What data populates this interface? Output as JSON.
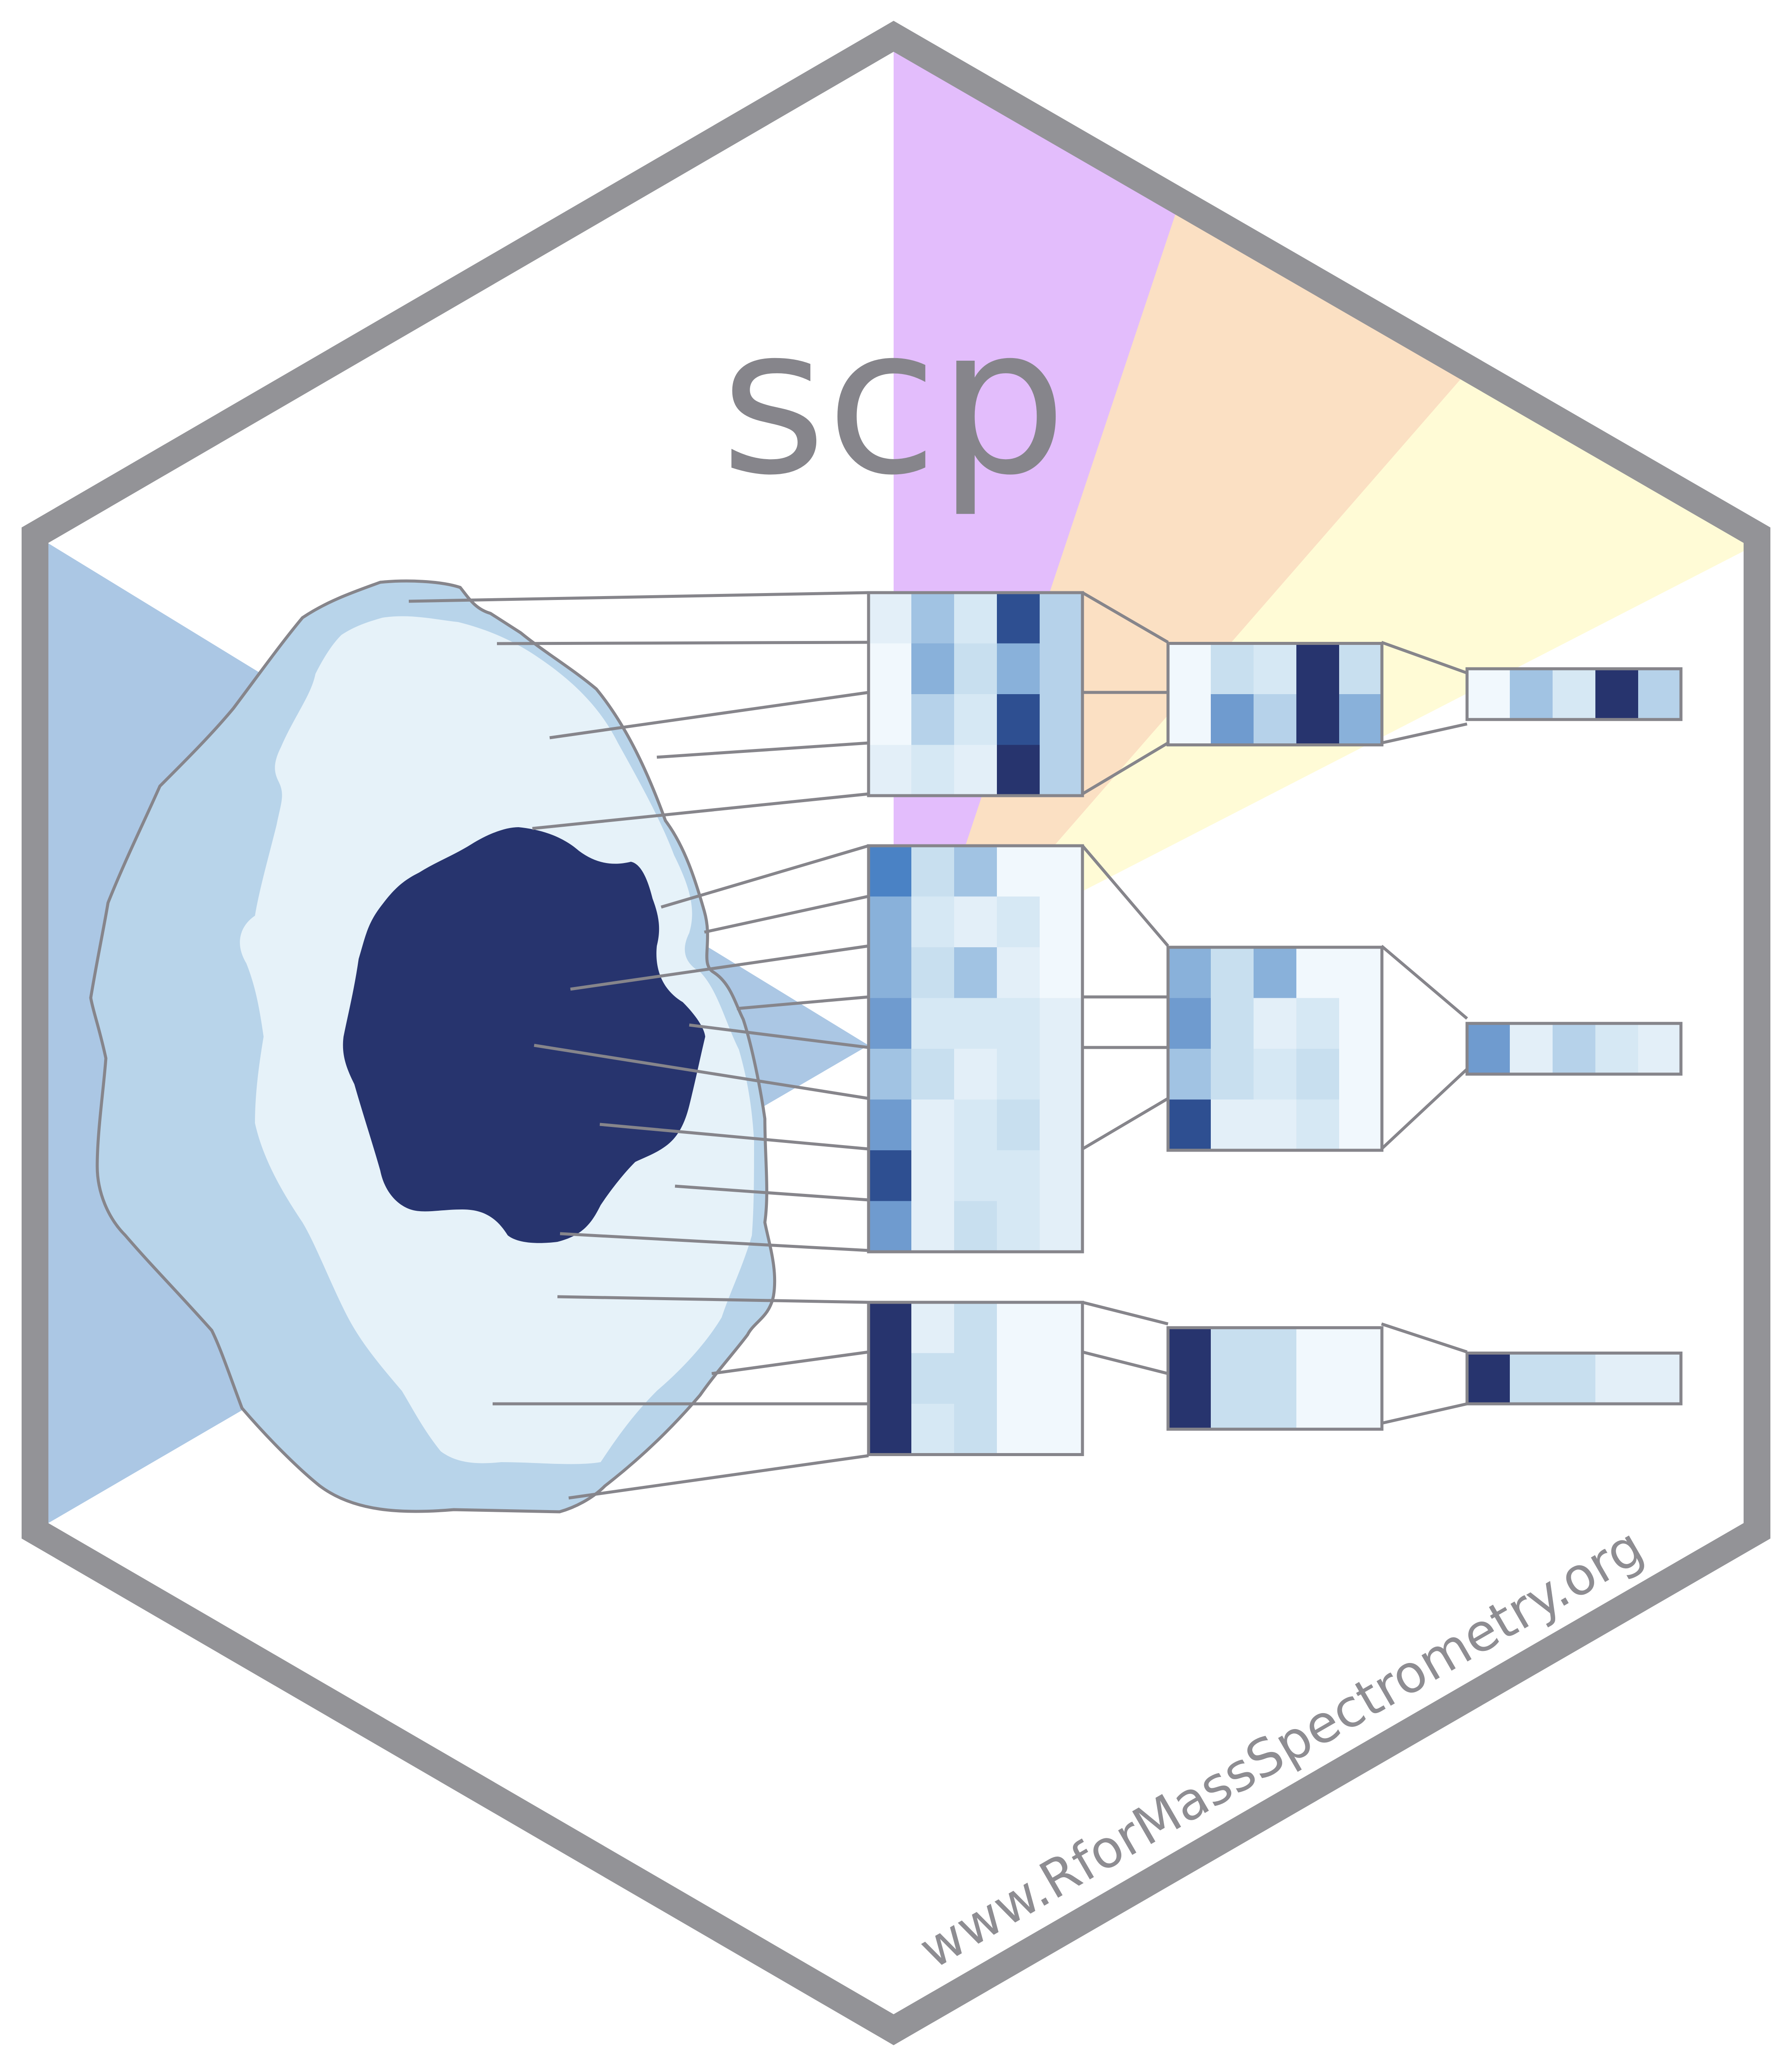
{
  "logo": {
    "title": "scp",
    "url": "www.RforMassSpectrometry.org"
  },
  "colors": {
    "hex_border": "#939397",
    "text": "#86858b",
    "ray_purple": "#e3bdfc",
    "ray_orange": "#fbe0c3",
    "ray_yellow": "#fffbd6",
    "ray_blue": "#abc7e4",
    "cell_outer": "#b8d4ea",
    "cell_inner": "#e6f2f9",
    "nucleus": "#27346e"
  },
  "heatmaps": [
    {
      "name": "top",
      "levels": [
        [
          [
            1,
            5,
            2,
            9,
            4
          ],
          [
            0,
            6,
            3,
            6,
            4
          ],
          [
            0,
            4,
            2,
            9,
            4
          ],
          [
            1,
            2,
            1,
            10,
            4
          ]
        ],
        [
          [
            0,
            3,
            2,
            10,
            3
          ],
          [
            0,
            7,
            4,
            10,
            6
          ]
        ],
        [
          [
            0,
            5,
            2,
            10,
            4
          ]
        ]
      ]
    },
    {
      "name": "middle",
      "levels": [
        [
          [
            8,
            3,
            5,
            0,
            0
          ],
          [
            6,
            2,
            1,
            2,
            0
          ],
          [
            6,
            3,
            5,
            1,
            0
          ],
          [
            7,
            2,
            2,
            2,
            1
          ],
          [
            5,
            3,
            1,
            2,
            1
          ],
          [
            7,
            1,
            2,
            3,
            1
          ],
          [
            9,
            1,
            2,
            2,
            1
          ],
          [
            7,
            1,
            3,
            2,
            1
          ]
        ],
        [
          [
            6,
            3,
            6,
            0,
            0
          ],
          [
            7,
            3,
            1,
            2,
            0
          ],
          [
            5,
            3,
            2,
            3,
            0
          ],
          [
            9,
            1,
            1,
            2,
            0
          ]
        ],
        [
          [
            7,
            1,
            4,
            2,
            1
          ]
        ]
      ]
    },
    {
      "name": "bottom",
      "levels": [
        [
          [
            10,
            1,
            3,
            0,
            0
          ],
          [
            10,
            3,
            3,
            0,
            0
          ],
          [
            10,
            2,
            3,
            0,
            0
          ]
        ],
        [
          [
            10,
            3,
            3,
            0,
            0
          ],
          [
            10,
            3,
            3,
            0,
            0
          ]
        ],
        [
          [
            10,
            3,
            3,
            1,
            1
          ]
        ]
      ]
    }
  ]
}
